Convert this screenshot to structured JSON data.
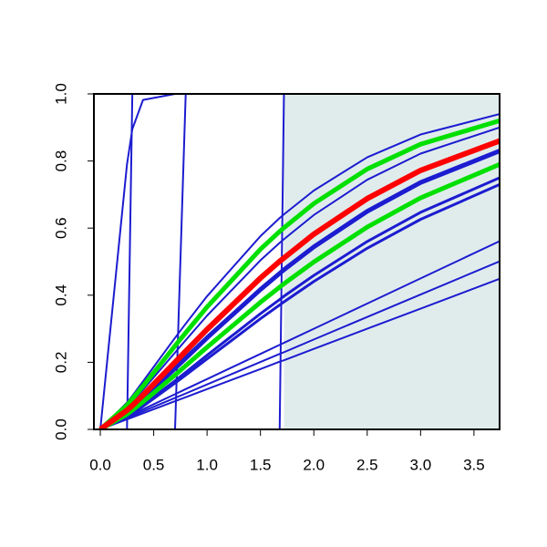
{
  "chart_data": {
    "type": "line",
    "x": [
      0,
      0.25,
      0.3,
      0.4,
      0.7,
      0.8,
      1.0,
      1.5,
      1.68,
      1.72,
      2.0,
      2.5,
      3.0,
      3.74
    ],
    "xlim": [
      -0.06,
      3.74
    ],
    "ylim": [
      0,
      1
    ],
    "xticks": [
      {
        "value": 0,
        "label": "0.0"
      },
      0.5,
      {
        "value": 1,
        "label": "1.0"
      },
      1.5,
      {
        "value": 2,
        "label": "2.0"
      },
      2.5,
      {
        "value": 3,
        "label": "3.0"
      },
      3.5
    ],
    "yticks": [
      {
        "value": 0,
        "label": "0.0"
      },
      0.2,
      0.4,
      0.6,
      0.8,
      {
        "value": 1,
        "label": "1.0"
      }
    ],
    "shade": {
      "xlim": [
        1.72,
        3.74
      ],
      "color": "#e0ecec"
    },
    "series": [
      {
        "color": "#1c1cd0",
        "width": 2,
        "values": [
          0,
          0.08,
          0.1,
          0.143,
          0.273,
          0.315,
          0.397,
          0.576,
          0.63,
          0.641,
          0.712,
          0.811,
          0.879,
          0.94
        ]
      },
      {
        "color": "#1c1cd0",
        "width": 2,
        "values": [
          0,
          0.066,
          0.083,
          0.118,
          0.229,
          0.266,
          0.339,
          0.504,
          0.556,
          0.567,
          0.639,
          0.744,
          0.822,
          0.9
        ]
      },
      {
        "color": "#1c1cd0",
        "width": 5,
        "values": [
          0,
          0.051,
          0.065,
          0.092,
          0.182,
          0.212,
          0.273,
          0.417,
          0.465,
          0.476,
          0.544,
          0.65,
          0.736,
          0.83
        ]
      },
      {
        "color": "#1c1cd0",
        "width": 3,
        "values": [
          0,
          0.04,
          0.051,
          0.073,
          0.145,
          0.17,
          0.221,
          0.345,
          0.387,
          0.397,
          0.459,
          0.56,
          0.647,
          0.75
        ]
      },
      {
        "color": "#1c1cd0",
        "width": 3,
        "values": [
          0,
          0.038,
          0.048,
          0.069,
          0.138,
          0.162,
          0.21,
          0.33,
          0.371,
          0.38,
          0.441,
          0.54,
          0.626,
          0.73
        ]
      },
      {
        "color": "#1c1cd0",
        "width": 2,
        "values": [
          0,
          0.0375,
          0.045,
          0.06,
          0.105,
          0.12,
          0.15,
          0.225,
          0.252,
          0.258,
          0.3,
          0.375,
          0.45,
          0.561
        ]
      },
      {
        "color": "#1c1cd0",
        "width": 2,
        "values": [
          0,
          0.0335,
          0.04,
          0.054,
          0.094,
          0.107,
          0.134,
          0.201,
          0.225,
          0.23,
          0.268,
          0.335,
          0.402,
          0.501
        ]
      },
      {
        "color": "#1c1cd0",
        "width": 2,
        "values": [
          0,
          0.03,
          0.036,
          0.048,
          0.084,
          0.096,
          0.12,
          0.18,
          0.202,
          0.206,
          0.24,
          0.3,
          0.36,
          0.449
        ]
      },
      {
        "color": "#1c1cd0",
        "width": 2,
        "values": [
          0,
          0.79,
          0.895,
          0.982,
          1,
          1,
          1,
          1,
          1,
          1,
          1,
          1,
          1,
          1
        ]
      },
      {
        "color": "#1c1cd0",
        "width": 2,
        "values": [
          0,
          0,
          1,
          1,
          1,
          1,
          1,
          1,
          1,
          1,
          1,
          1,
          1,
          1
        ]
      },
      {
        "color": "#1c1cd0",
        "width": 2,
        "values": [
          0,
          0,
          0,
          0,
          0,
          1,
          1,
          1,
          1,
          1,
          1,
          1,
          1,
          1
        ]
      },
      {
        "color": "#1c1cd0",
        "width": 2,
        "values": [
          0,
          0,
          0,
          0,
          0,
          0,
          0,
          0,
          0,
          1,
          1,
          1,
          1,
          1
        ]
      },
      {
        "color": "#00e000",
        "width": 5,
        "values": [
          0,
          0.072,
          0.091,
          0.129,
          0.249,
          0.288,
          0.365,
          0.537,
          0.59,
          0.601,
          0.673,
          0.776,
          0.85,
          0.92
        ]
      },
      {
        "color": "#00e000",
        "width": 5,
        "values": [
          0,
          0.045,
          0.057,
          0.082,
          0.162,
          0.19,
          0.245,
          0.379,
          0.424,
          0.434,
          0.499,
          0.603,
          0.69,
          0.79
        ]
      },
      {
        "color": "#ff0000",
        "width": 6,
        "values": [
          0,
          0.057,
          0.071,
          0.102,
          0.2,
          0.233,
          0.298,
          0.451,
          0.501,
          0.511,
          0.582,
          0.688,
          0.772,
          0.86
        ]
      }
    ]
  }
}
